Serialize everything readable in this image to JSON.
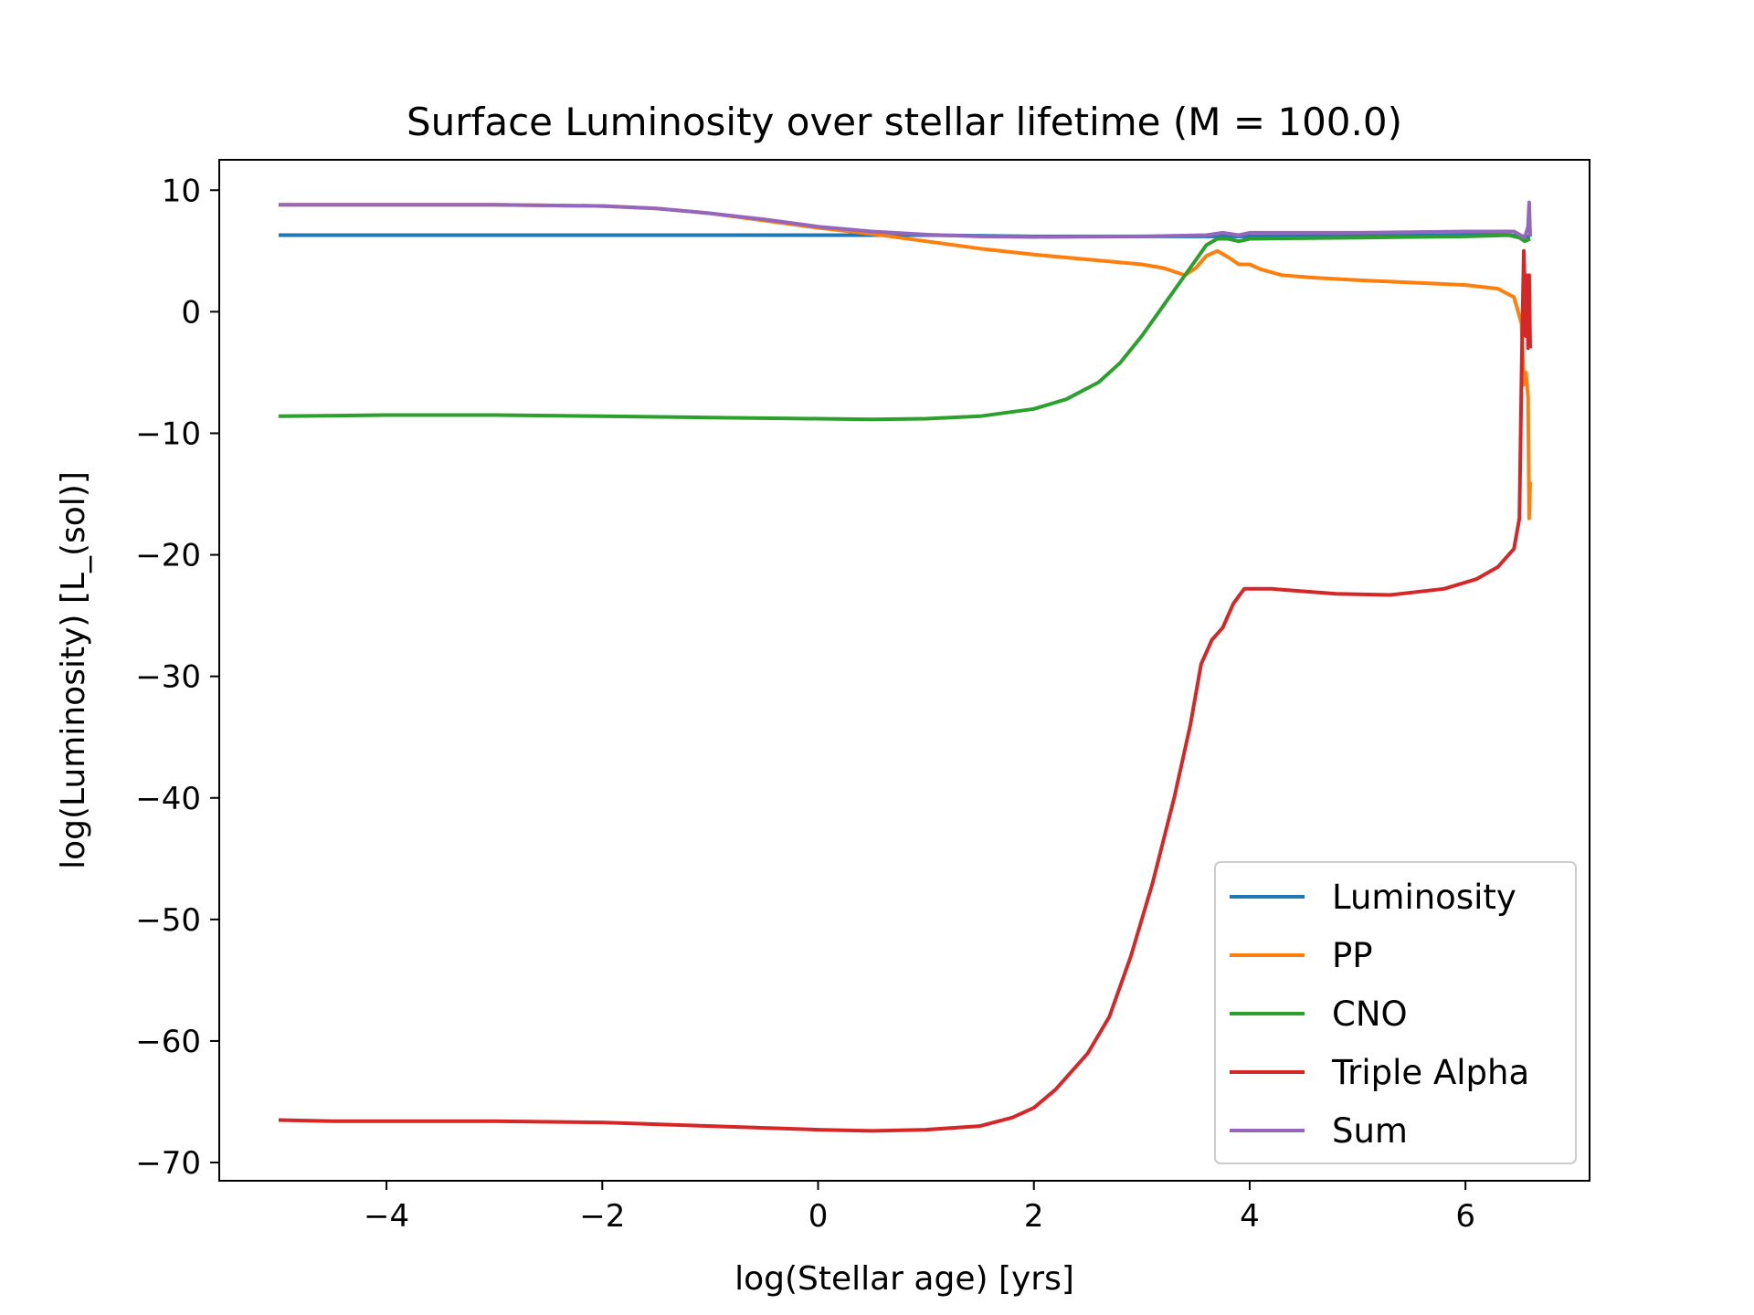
{
  "chart_data": {
    "type": "line",
    "title": "Surface Luminosity  over stellar lifetime (M = 100.0)",
    "xlabel": "log(Stellar age) [yrs]",
    "ylabel": "log(Luminosity) [L_(sol)]",
    "xlim": [
      -5.55,
      7.15
    ],
    "ylim": [
      -71.5,
      12.5
    ],
    "xticks": [
      -4,
      -2,
      0,
      2,
      4,
      6
    ],
    "xtick_labels": [
      "−4",
      "−2",
      "0",
      "2",
      "4",
      "6"
    ],
    "yticks": [
      10,
      0,
      -10,
      -20,
      -30,
      -40,
      -50,
      -60,
      -70
    ],
    "ytick_labels": [
      "10",
      "0",
      "−10",
      "−20",
      "−30",
      "−40",
      "−50",
      "−60",
      "−70"
    ],
    "grid": false,
    "legend": "lower-right",
    "series": [
      {
        "name": "Luminosity",
        "color": "#1f77b4",
        "points": [
          [
            -5,
            6.3
          ],
          [
            -3,
            6.3
          ],
          [
            -1,
            6.3
          ],
          [
            0,
            6.3
          ],
          [
            1,
            6.3
          ],
          [
            2,
            6.2
          ],
          [
            3,
            6.2
          ],
          [
            4,
            6.2
          ],
          [
            5,
            6.25
          ],
          [
            6,
            6.3
          ],
          [
            6.4,
            6.3
          ],
          [
            6.55,
            6.2
          ],
          [
            6.6,
            6.2
          ]
        ]
      },
      {
        "name": "PP",
        "color": "#ff7f0e",
        "points": [
          [
            -5,
            8.8
          ],
          [
            -4,
            8.8
          ],
          [
            -3,
            8.8
          ],
          [
            -2,
            8.7
          ],
          [
            -1.5,
            8.5
          ],
          [
            -1,
            8.1
          ],
          [
            -0.5,
            7.5
          ],
          [
            0,
            6.9
          ],
          [
            0.5,
            6.4
          ],
          [
            1,
            5.8
          ],
          [
            1.5,
            5.2
          ],
          [
            2,
            4.7
          ],
          [
            2.5,
            4.3
          ],
          [
            3,
            3.9
          ],
          [
            3.2,
            3.6
          ],
          [
            3.4,
            3.0
          ],
          [
            3.5,
            3.6
          ],
          [
            3.6,
            4.6
          ],
          [
            3.7,
            5.0
          ],
          [
            3.8,
            4.5
          ],
          [
            3.9,
            3.9
          ],
          [
            4.0,
            3.9
          ],
          [
            4.1,
            3.5
          ],
          [
            4.3,
            3.0
          ],
          [
            4.6,
            2.8
          ],
          [
            5,
            2.6
          ],
          [
            5.5,
            2.4
          ],
          [
            6,
            2.2
          ],
          [
            6.3,
            1.9
          ],
          [
            6.45,
            1.2
          ],
          [
            6.52,
            -1.0
          ],
          [
            6.54,
            -6.0
          ],
          [
            6.56,
            -5.0
          ],
          [
            6.58,
            -7.0
          ],
          [
            6.59,
            -17.0
          ],
          [
            6.6,
            -14.0
          ]
        ]
      },
      {
        "name": "CNO",
        "color": "#2ca02c",
        "points": [
          [
            -5,
            -8.6
          ],
          [
            -4,
            -8.5
          ],
          [
            -3,
            -8.5
          ],
          [
            -2,
            -8.6
          ],
          [
            -1,
            -8.7
          ],
          [
            0,
            -8.8
          ],
          [
            0.5,
            -8.85
          ],
          [
            1,
            -8.8
          ],
          [
            1.5,
            -8.6
          ],
          [
            2,
            -8.0
          ],
          [
            2.3,
            -7.2
          ],
          [
            2.6,
            -5.8
          ],
          [
            2.8,
            -4.2
          ],
          [
            3.0,
            -2.0
          ],
          [
            3.2,
            0.5
          ],
          [
            3.4,
            3.0
          ],
          [
            3.6,
            5.5
          ],
          [
            3.7,
            6.0
          ],
          [
            3.8,
            6.0
          ],
          [
            3.9,
            5.8
          ],
          [
            4.0,
            6.0
          ],
          [
            5,
            6.1
          ],
          [
            6,
            6.2
          ],
          [
            6.4,
            6.3
          ],
          [
            6.5,
            6.1
          ],
          [
            6.55,
            5.8
          ],
          [
            6.6,
            6.0
          ]
        ]
      },
      {
        "name": "Triple Alpha",
        "color": "#d62728",
        "points": [
          [
            -5,
            -66.5
          ],
          [
            -4.5,
            -66.6
          ],
          [
            -3,
            -66.6
          ],
          [
            -2,
            -66.7
          ],
          [
            -1,
            -67.0
          ],
          [
            0,
            -67.3
          ],
          [
            0.5,
            -67.4
          ],
          [
            1,
            -67.3
          ],
          [
            1.5,
            -67.0
          ],
          [
            1.8,
            -66.3
          ],
          [
            2,
            -65.5
          ],
          [
            2.2,
            -64.0
          ],
          [
            2.5,
            -61.0
          ],
          [
            2.7,
            -58.0
          ],
          [
            2.9,
            -53.0
          ],
          [
            3.1,
            -47.0
          ],
          [
            3.3,
            -40.0
          ],
          [
            3.45,
            -34.0
          ],
          [
            3.55,
            -29.0
          ],
          [
            3.65,
            -27.0
          ],
          [
            3.75,
            -26.0
          ],
          [
            3.85,
            -24.0
          ],
          [
            3.95,
            -22.8
          ],
          [
            4.2,
            -22.8
          ],
          [
            4.8,
            -23.2
          ],
          [
            5.3,
            -23.3
          ],
          [
            5.8,
            -22.8
          ],
          [
            6.1,
            -22.0
          ],
          [
            6.3,
            -21.0
          ],
          [
            6.45,
            -19.5
          ],
          [
            6.5,
            -17.0
          ],
          [
            6.52,
            -5.0
          ],
          [
            6.54,
            5.0
          ],
          [
            6.56,
            -2.0
          ],
          [
            6.57,
            3.0
          ],
          [
            6.58,
            -3.0
          ],
          [
            6.59,
            3.0
          ],
          [
            6.6,
            -3.0
          ]
        ]
      },
      {
        "name": "Sum",
        "color": "#9467bd",
        "points": [
          [
            -5,
            8.8
          ],
          [
            -4,
            8.8
          ],
          [
            -3,
            8.8
          ],
          [
            -2,
            8.7
          ],
          [
            -1.5,
            8.5
          ],
          [
            -1,
            8.1
          ],
          [
            -0.5,
            7.6
          ],
          [
            0,
            7.0
          ],
          [
            0.5,
            6.6
          ],
          [
            1,
            6.35
          ],
          [
            1.5,
            6.2
          ],
          [
            2,
            6.15
          ],
          [
            3,
            6.2
          ],
          [
            3.6,
            6.3
          ],
          [
            3.75,
            6.5
          ],
          [
            3.9,
            6.3
          ],
          [
            4,
            6.5
          ],
          [
            5,
            6.5
          ],
          [
            6,
            6.6
          ],
          [
            6.45,
            6.6
          ],
          [
            6.55,
            6.1
          ],
          [
            6.58,
            7.0
          ],
          [
            6.59,
            9.0
          ],
          [
            6.6,
            6.2
          ]
        ]
      }
    ]
  }
}
